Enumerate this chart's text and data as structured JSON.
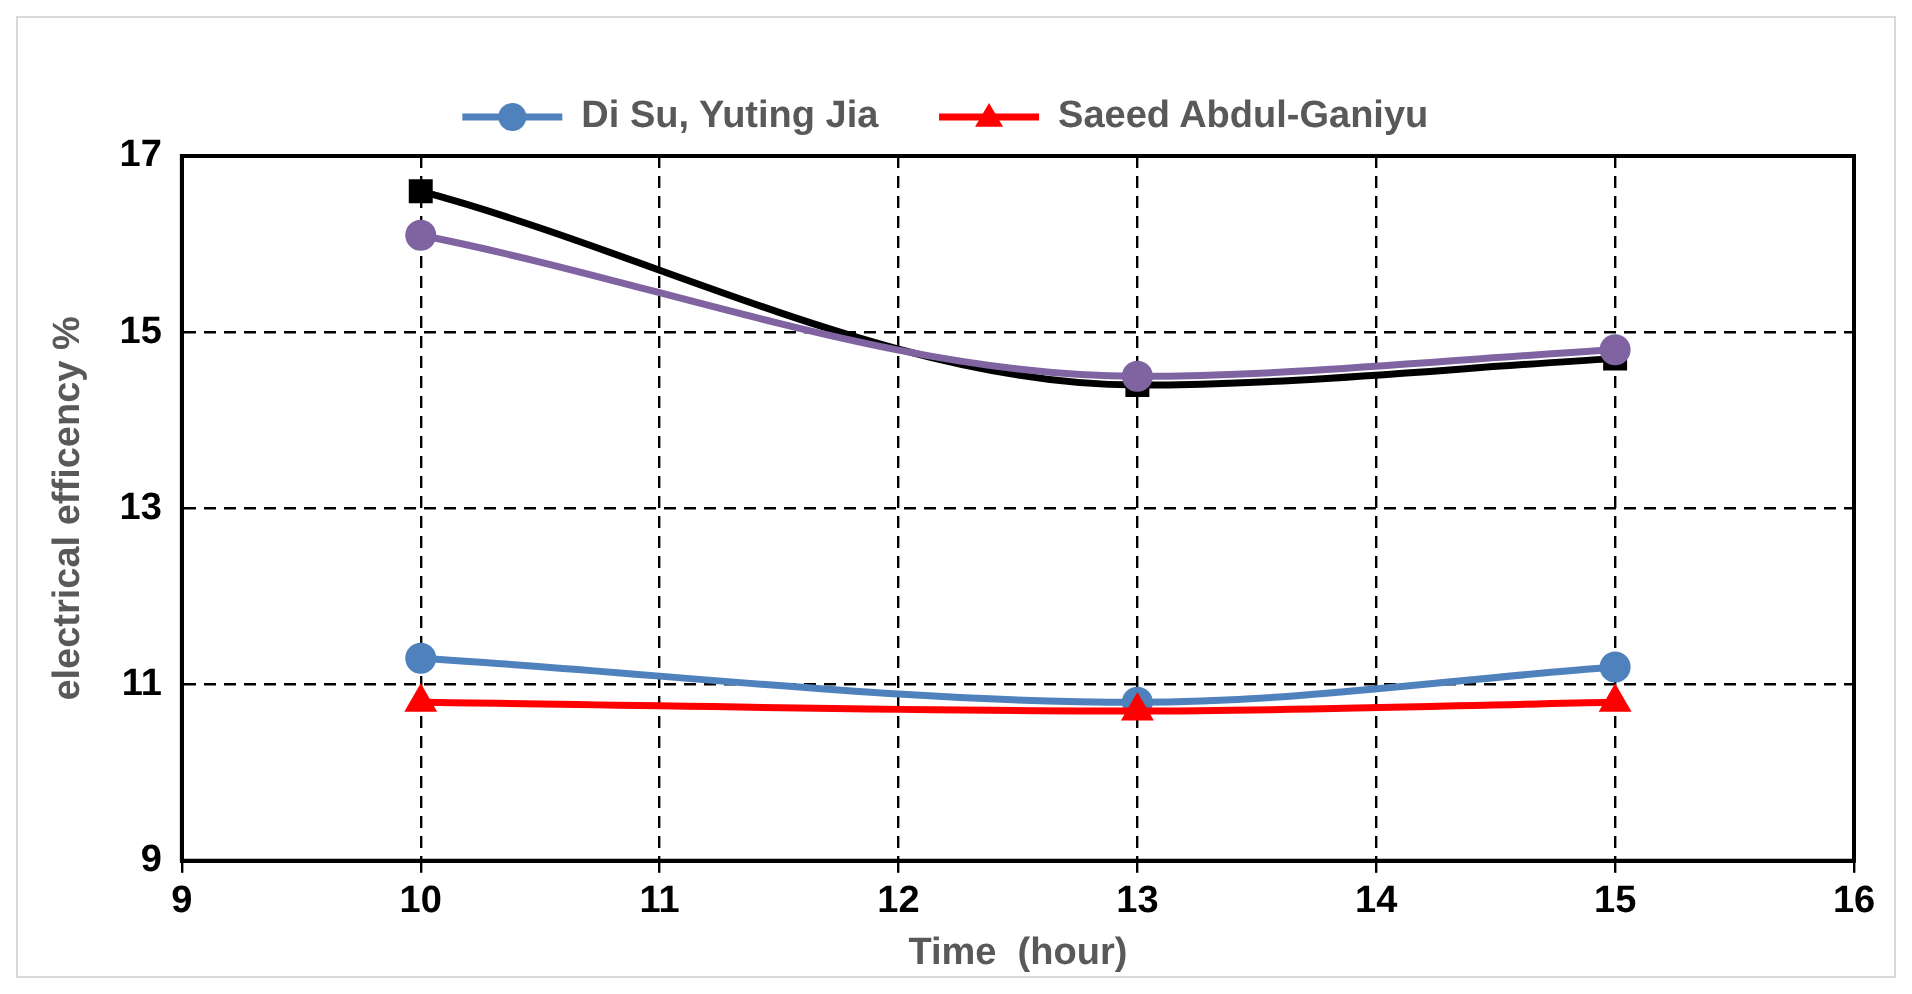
{
  "chart_data": {
    "type": "line",
    "xlabel": "Time  (hour)",
    "ylabel": "electrical efficency %",
    "x": [
      10,
      13,
      15
    ],
    "series": [
      {
        "name": "Di Su, Yuting Jia",
        "color": "#4f81bd",
        "marker": "circle",
        "values": [
          11.3,
          10.8,
          11.2
        ]
      },
      {
        "name": "Saeed Abdul-Ganiyu",
        "color": "#ff0000",
        "marker": "triangle",
        "values": [
          10.8,
          10.7,
          10.8
        ]
      },
      {
        "color": "#000000",
        "marker": "square",
        "values": [
          16.6,
          14.4,
          14.7
        ]
      },
      {
        "color": "#8064a2",
        "marker": "circle",
        "values": [
          16.1,
          14.5,
          14.8
        ]
      }
    ],
    "xlim": [
      9,
      16
    ],
    "xticks": [
      9,
      10,
      11,
      12,
      13,
      14,
      15,
      16
    ],
    "ylim": [
      9,
      17
    ],
    "yticks": [
      9,
      11,
      13,
      15,
      17
    ],
    "grid": true,
    "legend": "top",
    "line_style": "solid"
  }
}
